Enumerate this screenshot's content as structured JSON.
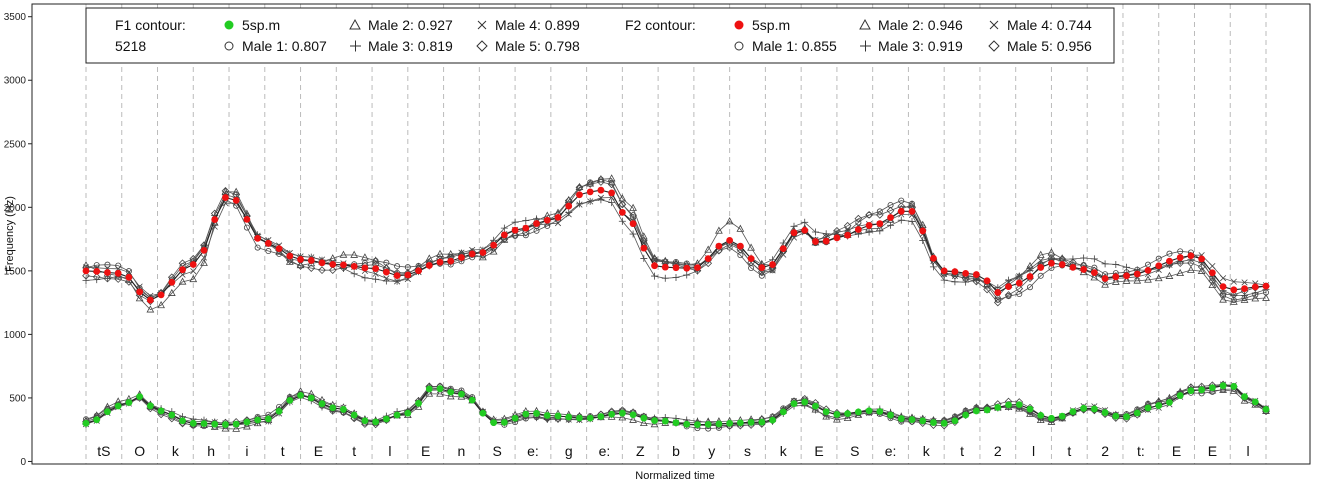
{
  "chart_data": {
    "type": "line",
    "xlabel": "Normalized time",
    "ylabel": "Frequency (Hz)",
    "ylim": [
      -20,
      3600
    ],
    "yticks": [
      0,
      500,
      1000,
      1500,
      2000,
      2500,
      3000,
      3500
    ],
    "grid": "vertical dashed at segment boundaries",
    "segments": [
      "tS",
      "O",
      "k",
      "h",
      "i",
      "t",
      "E",
      "t",
      "l",
      "E",
      "n",
      "S",
      "e:",
      "g",
      "e:",
      "Z",
      "b",
      "y",
      "s",
      "k",
      "E",
      "S",
      "e:",
      "k",
      "t",
      "2",
      "l",
      "t",
      "2",
      "t:",
      "E",
      "E",
      "l"
    ],
    "legend": {
      "placement": "top",
      "f1_title": "F1 contour:",
      "f1_id": "5218",
      "f1_entries": [
        "5sp.m",
        "Male 1: 0.807",
        "Male 2: 0.927",
        "Male 3: 0.819",
        "Male 4: 0.899",
        "Male 5: 0.798"
      ],
      "f2_title": "F2 contour:",
      "f2_entries": [
        "5sp.m",
        "Male 1: 0.855",
        "Male 2: 0.946",
        "Male 3: 0.919",
        "Male 4: 0.744",
        "Male 5: 0.956"
      ]
    },
    "colors": {
      "f1_mean": "#22cc22",
      "f2_mean": "#ee1111",
      "speakers": "#555555"
    },
    "f2_mean_keypoints": [
      [
        0,
        1500
      ],
      [
        1,
        1480
      ],
      [
        1.8,
        1270
      ],
      [
        3,
        1550
      ],
      [
        4,
        2090
      ],
      [
        5,
        1720
      ],
      [
        6,
        1590
      ],
      [
        7,
        1550
      ],
      [
        8,
        1520
      ],
      [
        8.8,
        1460
      ],
      [
        10,
        1570
      ],
      [
        11,
        1640
      ],
      [
        12,
        1820
      ],
      [
        13,
        1900
      ],
      [
        14,
        2120
      ],
      [
        14.6,
        2140
      ],
      [
        15,
        1960
      ],
      [
        16,
        1530
      ],
      [
        17,
        1520
      ],
      [
        18,
        1740
      ],
      [
        19,
        1520
      ],
      [
        20,
        1830
      ],
      [
        20.5,
        1720
      ],
      [
        21,
        1760
      ],
      [
        22,
        1860
      ],
      [
        23,
        1980
      ],
      [
        24,
        1500
      ],
      [
        25,
        1470
      ],
      [
        25.5,
        1330
      ],
      [
        26,
        1400
      ],
      [
        27,
        1560
      ],
      [
        28,
        1510
      ],
      [
        28.5,
        1440
      ],
      [
        29,
        1460
      ],
      [
        31,
        1620
      ],
      [
        32,
        1350
      ],
      [
        33,
        1380
      ]
    ],
    "f1_mean_keypoints": [
      [
        0,
        300
      ],
      [
        1,
        440
      ],
      [
        1.5,
        510
      ],
      [
        2,
        400
      ],
      [
        3,
        300
      ],
      [
        4,
        290
      ],
      [
        5,
        330
      ],
      [
        6,
        520
      ],
      [
        7,
        420
      ],
      [
        8,
        310
      ],
      [
        9,
        380
      ],
      [
        9.7,
        580
      ],
      [
        10.5,
        530
      ],
      [
        11.5,
        300
      ],
      [
        12.5,
        380
      ],
      [
        13,
        360
      ],
      [
        14,
        340
      ],
      [
        15,
        380
      ],
      [
        16,
        320
      ],
      [
        17,
        290
      ],
      [
        19,
        310
      ],
      [
        20,
        470
      ],
      [
        21,
        370
      ],
      [
        22,
        400
      ],
      [
        23,
        330
      ],
      [
        24,
        300
      ],
      [
        25,
        400
      ],
      [
        26,
        450
      ],
      [
        27,
        340
      ],
      [
        28,
        420
      ],
      [
        29,
        350
      ],
      [
        30,
        440
      ],
      [
        31,
        560
      ],
      [
        32,
        600
      ],
      [
        32.5,
        500
      ],
      [
        33,
        410
      ]
    ]
  }
}
